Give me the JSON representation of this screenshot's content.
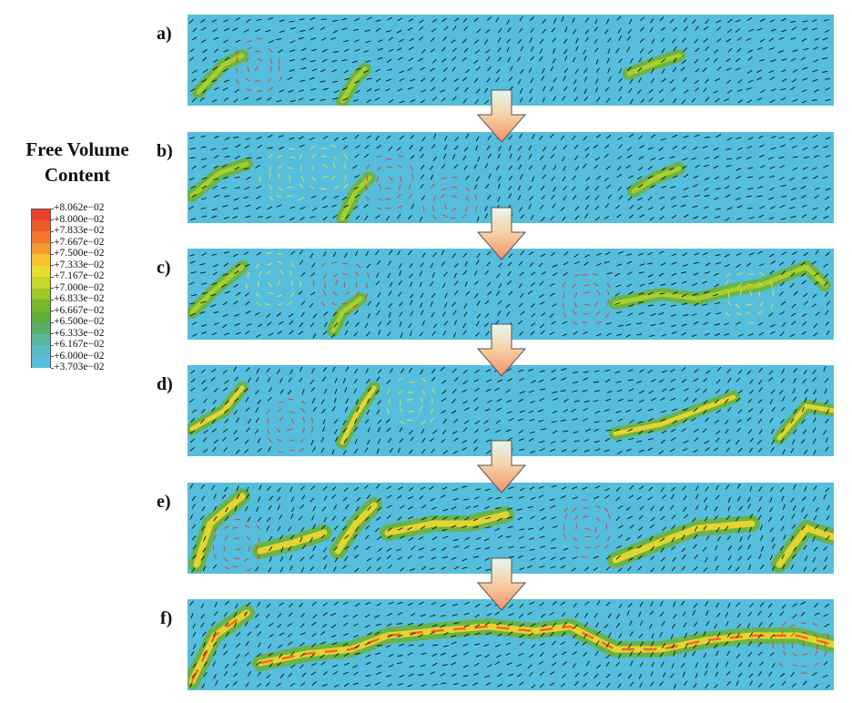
{
  "legend": {
    "title_line1": "Free Volume",
    "title_line2": "Content",
    "entries": [
      {
        "label": "+8.062e−02",
        "color": "#e8402a"
      },
      {
        "label": "+8.000e−02",
        "color": "#ed5a2a"
      },
      {
        "label": "+7.833e−02",
        "color": "#f2772d"
      },
      {
        "label": "+7.667e−02",
        "color": "#f59a2f"
      },
      {
        "label": "+7.500e−02",
        "color": "#f5c232"
      },
      {
        "label": "+7.333e−02",
        "color": "#e8dc2e"
      },
      {
        "label": "+7.167e−02",
        "color": "#c6d62b"
      },
      {
        "label": "+7.000e−02",
        "color": "#9dc92a"
      },
      {
        "label": "+6.833e−02",
        "color": "#78b92a"
      },
      {
        "label": "+6.667e−02",
        "color": "#5fae3a"
      },
      {
        "label": "+6.500e−02",
        "color": "#58ad6a"
      },
      {
        "label": "+6.333e−02",
        "color": "#5ab49c"
      },
      {
        "label": "+6.167e−02",
        "color": "#58bac6"
      },
      {
        "label": "+6.000e−02",
        "color": "#55bedc"
      },
      {
        "label": "+3.703e−02",
        "color": ""
      }
    ]
  },
  "panels": [
    {
      "label": "a)"
    },
    {
      "label": "b)"
    },
    {
      "label": "c)"
    },
    {
      "label": "d)"
    },
    {
      "label": "e)"
    },
    {
      "label": "f)"
    }
  ]
}
